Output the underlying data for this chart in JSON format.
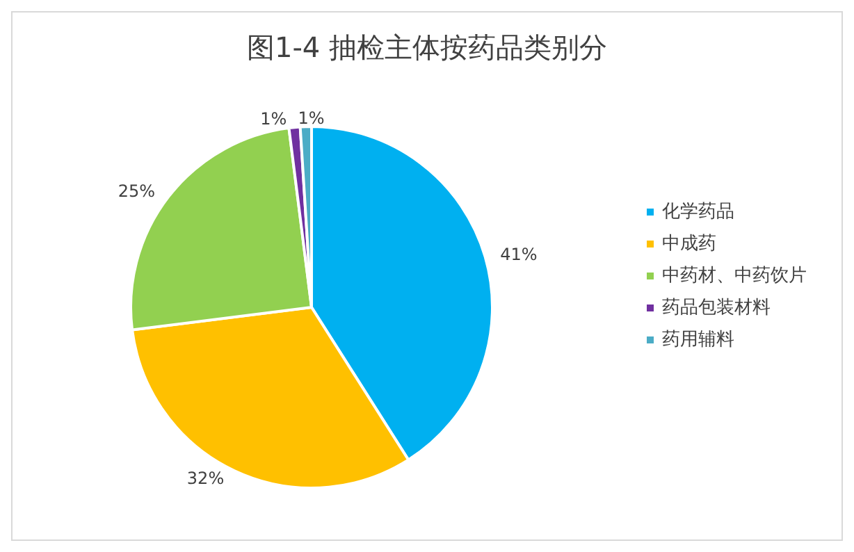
{
  "chart_data": {
    "type": "pie",
    "title": "图1-4 抽检主体按药品类别分",
    "categories": [
      "化学药品",
      "中成药",
      "中药材、中药饮片",
      "药品包装材料",
      "药用辅料"
    ],
    "values": [
      41,
      32,
      25,
      1,
      1
    ],
    "colors": [
      "#00b0f0",
      "#ffc000",
      "#92d050",
      "#7030a0",
      "#4bacc6"
    ],
    "value_labels": [
      "41%",
      "32%",
      "25%",
      "1%",
      "1%"
    ],
    "legend": "right"
  }
}
